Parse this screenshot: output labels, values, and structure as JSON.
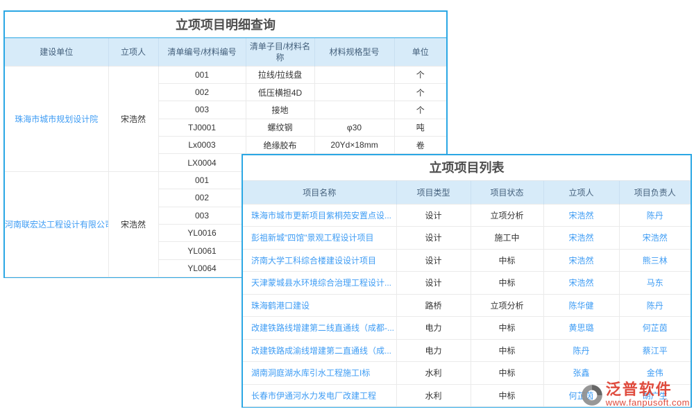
{
  "detail_panel": {
    "title": "立项项目明细查询",
    "columns": [
      "建设单位",
      "立项人",
      "清单编号/材料编号",
      "清单子目/材料名称",
      "材料规格型号",
      "单位"
    ],
    "groups": [
      {
        "unit": "珠海市城市规划设计院",
        "initiator": "宋浩然",
        "rows": [
          {
            "code": "001",
            "name": "拉线/拉线盘",
            "spec": "",
            "uom": "个"
          },
          {
            "code": "002",
            "name": "低压横担4D",
            "spec": "",
            "uom": "个"
          },
          {
            "code": "003",
            "name": "接地",
            "spec": "",
            "uom": "个"
          },
          {
            "code": "TJ0001",
            "name": "螺纹钢",
            "spec": "φ30",
            "uom": "吨"
          },
          {
            "code": "Lx0003",
            "name": "绝缘胶布",
            "spec": "20Yd×18mm",
            "uom": "卷"
          },
          {
            "code": "LX0004",
            "name": "",
            "spec": "",
            "uom": ""
          }
        ]
      },
      {
        "unit": "河南联宏达工程设计有限公司",
        "initiator": "宋浩然",
        "rows": [
          {
            "code": "001",
            "name": "",
            "spec": "",
            "uom": ""
          },
          {
            "code": "002",
            "name": "",
            "spec": "",
            "uom": ""
          },
          {
            "code": "003",
            "name": "",
            "spec": "",
            "uom": ""
          },
          {
            "code": "YL0016",
            "name": "",
            "spec": "",
            "uom": ""
          },
          {
            "code": "YL0061",
            "name": "",
            "spec": "",
            "uom": ""
          },
          {
            "code": "YL0064",
            "name": "",
            "spec": "",
            "uom": ""
          }
        ]
      }
    ]
  },
  "list_panel": {
    "title": "立项项目列表",
    "columns": [
      "项目名称",
      "项目类型",
      "项目状态",
      "立项人",
      "项目负责人"
    ],
    "rows": [
      {
        "name": "珠海市城市更新项目紫桐苑安置点设...",
        "type": "设计",
        "status": "立项分析",
        "initiator": "宋浩然",
        "manager": "陈丹"
      },
      {
        "name": "彭祖新城\"四馆\"景观工程设计项目",
        "type": "设计",
        "status": "施工中",
        "initiator": "宋浩然",
        "manager": "宋浩然"
      },
      {
        "name": "济南大学工科综合楼建设设计项目",
        "type": "设计",
        "status": "中标",
        "initiator": "宋浩然",
        "manager": "熊三林"
      },
      {
        "name": "天津蒙城县水环境综合治理工程设计...",
        "type": "设计",
        "status": "中标",
        "initiator": "宋浩然",
        "manager": "马东"
      },
      {
        "name": "珠海鹤港口建设",
        "type": "路桥",
        "status": "立项分析",
        "initiator": "陈华健",
        "manager": "陈丹"
      },
      {
        "name": "改建铁路线增建第二线直通线（成都-...",
        "type": "电力",
        "status": "中标",
        "initiator": "黄思璐",
        "manager": "何芷茵"
      },
      {
        "name": "改建铁路成渝线增建第二直通线（成...",
        "type": "电力",
        "status": "中标",
        "initiator": "陈丹",
        "manager": "蔡江平"
      },
      {
        "name": "湖南洞庭湖水库引水工程施工I标",
        "type": "水利",
        "status": "中标",
        "initiator": "张鑫",
        "manager": "金伟"
      },
      {
        "name": "长春市伊通河水力发电厂改建工程",
        "type": "水利",
        "status": "中标",
        "initiator": "何芷茵",
        "manager": "胡广生"
      }
    ]
  },
  "watermark": {
    "brand": "泛普软件",
    "url": "www.fanpusoft.com"
  },
  "colors": {
    "accent_border": "#2AA7E4",
    "header_bg": "#D7EBF9",
    "header_text": "#44607C",
    "link_blue": "#3E9CF4",
    "body_text": "#333333",
    "grid_line": "#EAEAEA",
    "watermark_red": "#DD3C2D"
  }
}
